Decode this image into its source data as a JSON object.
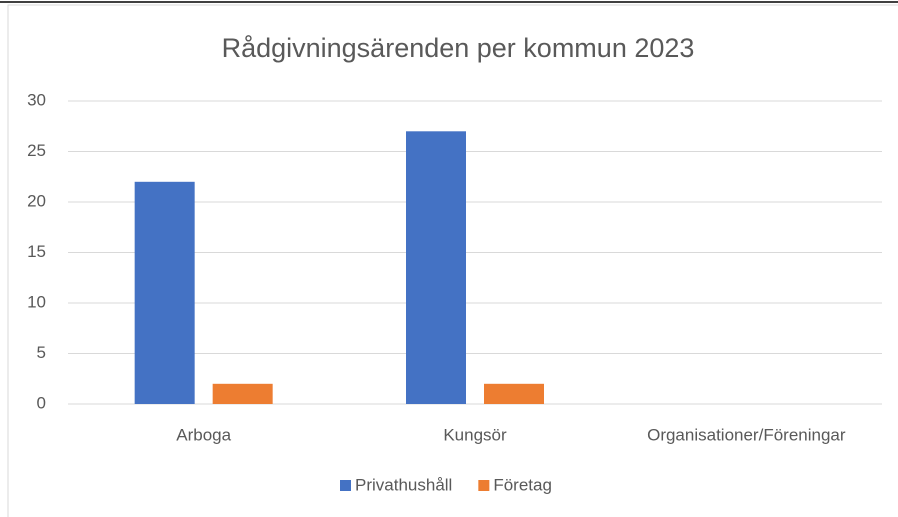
{
  "chart_data": {
    "type": "bar",
    "title": "Rådgivningsärenden per kommun 2023",
    "categories": [
      "Arboga",
      "Kungsör",
      "Organisationer/Föreningar"
    ],
    "series": [
      {
        "name": "Privathushåll",
        "color": "#4472c4",
        "values": [
          22,
          27,
          0
        ]
      },
      {
        "name": "Företag",
        "color": "#ed7d31",
        "values": [
          2,
          2,
          0
        ]
      }
    ],
    "ylim": [
      0,
      30
    ],
    "yticks": [
      0,
      5,
      10,
      15,
      20,
      25,
      30
    ],
    "grid": true,
    "legend": "bottom"
  }
}
